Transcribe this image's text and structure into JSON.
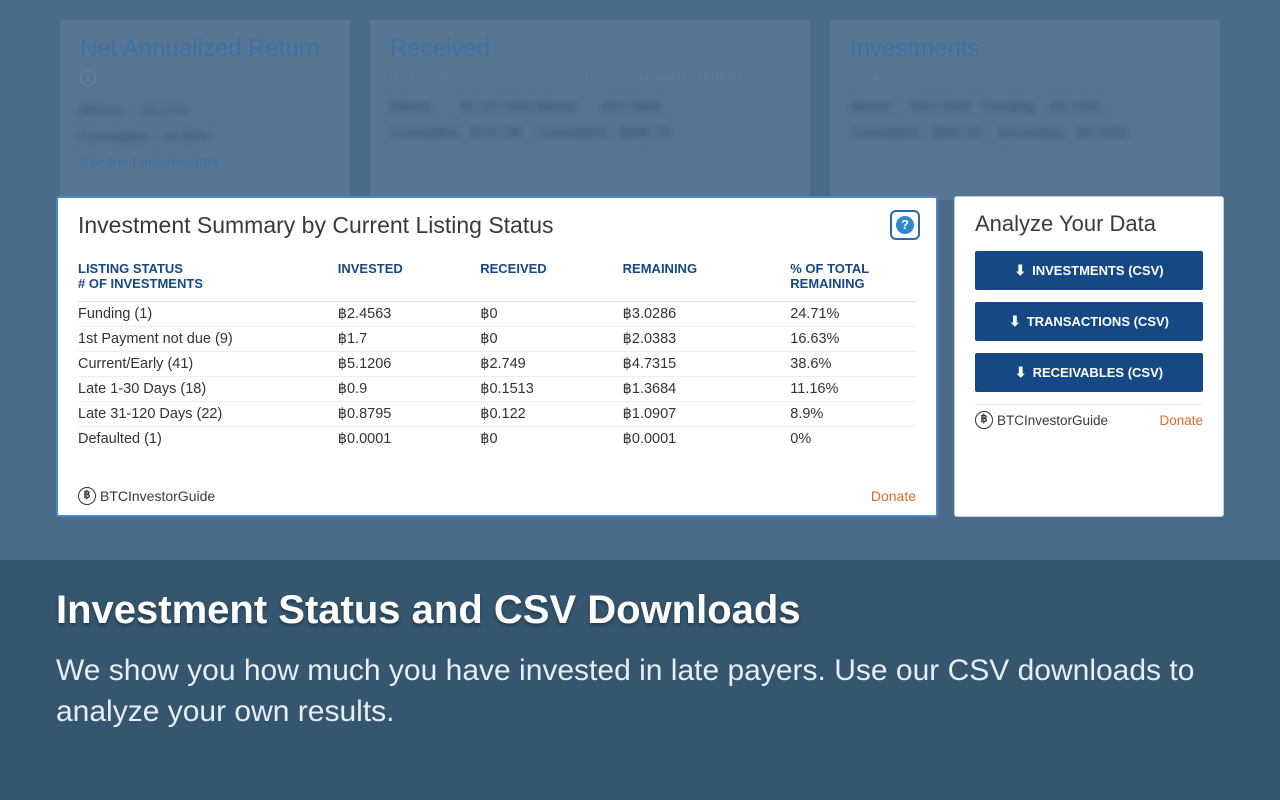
{
  "bg": {
    "nar_title": "Net Annualized Return",
    "nar_link": "See the Leaderboards",
    "received_title": "Received",
    "received_sub1": "INTEREST",
    "received_sub2": "PRINCIPAL AND INTEREST",
    "inv_title": "Investments",
    "inv_sub1": "TOTAL",
    "inv_sub2": "CURRENT"
  },
  "summary": {
    "title": "Investment Summary by Current Listing Status",
    "headers": {
      "status": "LISTING STATUS",
      "status2": "# OF INVESTMENTS",
      "invested": "INVESTED",
      "received": "RECEIVED",
      "remaining": "REMAINING",
      "pct": "% OF TOTAL",
      "pct2": "REMAINING"
    },
    "rows": [
      {
        "status": "Funding (1)",
        "invested": "฿2.4563",
        "received": "฿0",
        "remaining": "฿3.0286",
        "pct": "24.71%"
      },
      {
        "status": "1st Payment not due (9)",
        "invested": "฿1.7",
        "received": "฿0",
        "remaining": "฿2.0383",
        "pct": "16.63%"
      },
      {
        "status": "Current/Early (41)",
        "invested": "฿5.1206",
        "received": "฿2.749",
        "remaining": "฿4.7315",
        "pct": "38.6%"
      },
      {
        "status": "Late 1-30 Days (18)",
        "invested": "฿0.9",
        "received": "฿0.1513",
        "remaining": "฿1.3684",
        "pct": "11.16%"
      },
      {
        "status": "Late 31-120 Days (22)",
        "invested": "฿0.8795",
        "received": "฿0.122",
        "remaining": "฿1.0907",
        "pct": "8.9%"
      },
      {
        "status": "Defaulted (1)",
        "invested": "฿0.0001",
        "received": "฿0",
        "remaining": "฿0.0001",
        "pct": "0%"
      }
    ],
    "brand": "BTCInvestorGuide",
    "donate": "Donate"
  },
  "analyze": {
    "title": "Analyze Your Data",
    "buttons": {
      "investments": "INVESTMENTS (CSV)",
      "transactions": "TRANSACTIONS (CSV)",
      "receivables": "RECEIVABLES (CSV)"
    },
    "brand": "BTCInvestorGuide",
    "donate": "Donate"
  },
  "caption": {
    "heading": "Investment Status and CSV Downloads",
    "body": "We show you how much you have invested in late payers. Use our CSV downloads to analyze your own results."
  },
  "colors": {
    "page_bg": "#4a6b8a",
    "caption_bg": "#35566f",
    "panel_border": "#4a8acc",
    "header_text": "#164885",
    "btn_bg": "#164885",
    "donate": "#e06a2a"
  }
}
